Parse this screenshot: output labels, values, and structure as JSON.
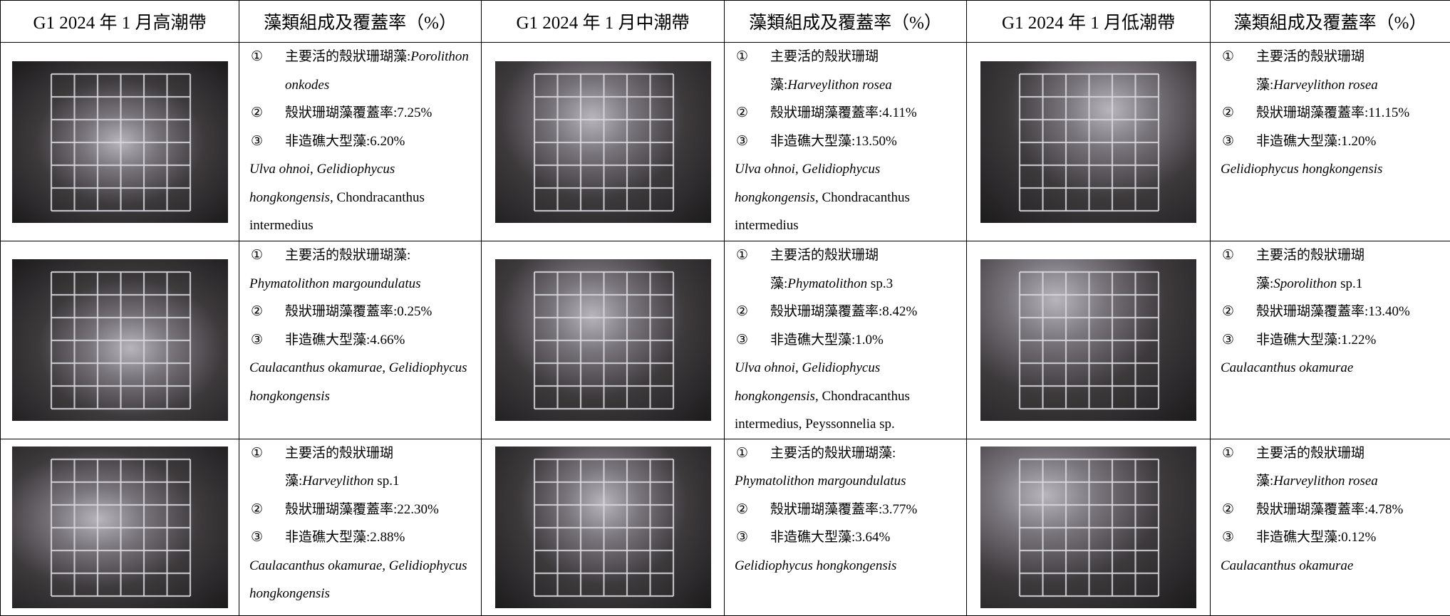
{
  "header": [
    "G1 2024 年 1 月高潮帶",
    "藻類組成及覆蓋率（%）",
    "G1 2024 年 1 月中潮帶",
    "藻類組成及覆蓋率（%）",
    "G1 2024 年 1 月低潮帶",
    "藻類組成及覆蓋率（%）"
  ],
  "rows": [
    [
      {
        "paragraphs": [
          {
            "marker": "①",
            "segments": [
              "主要活的殼狀珊瑚藻:",
              {
                "text": "Porolithon onkodes",
                "italic": true
              }
            ]
          },
          {
            "marker": "②",
            "segments": [
              "殼狀珊瑚藻覆蓋率:7.25%"
            ]
          },
          {
            "marker": "③",
            "segments": [
              "非造礁大型藻:6.20%"
            ]
          },
          {
            "segments": [
              {
                "text": "Ulva ohnoi",
                "italic": true
              },
              ", ",
              {
                "text": "Gelidiophycus hongkongensis",
                "italic": true
              },
              ", Chondracanthus intermedius"
            ]
          }
        ]
      },
      {
        "paragraphs": [
          {
            "marker": "①",
            "segments": [
              "主要活的殼狀珊瑚藻:",
              {
                "text": "Harveylithon rosea",
                "italic": true
              }
            ]
          },
          {
            "marker": "②",
            "segments": [
              "殼狀珊瑚藻覆蓋率:4.11%"
            ]
          },
          {
            "marker": "③",
            "segments": [
              "非造礁大型藻:13.50%"
            ]
          },
          {
            "segments": [
              {
                "text": "Ulva ohnoi",
                "italic": true
              },
              ", ",
              {
                "text": "Gelidiophycus hongkongensis",
                "italic": true
              },
              ", Chondracanthus intermedius"
            ]
          }
        ]
      },
      {
        "paragraphs": [
          {
            "marker": "①",
            "segments": [
              "主要活的殼狀珊瑚藻:",
              {
                "text": "Harveylithon rosea",
                "italic": true
              }
            ]
          },
          {
            "marker": "②",
            "segments": [
              "殼狀珊瑚藻覆蓋率:11.15%"
            ]
          },
          {
            "marker": "③",
            "segments": [
              "非造礁大型藻:1.20%"
            ]
          },
          {
            "segments": [
              {
                "text": "Gelidiophycus hongkongensis",
                "italic": true
              }
            ]
          }
        ]
      }
    ],
    [
      {
        "paragraphs": [
          {
            "marker": "①",
            "segments": [
              "主要活的殼狀珊瑚藻:"
            ]
          },
          {
            "segments": [
              {
                "text": "Phymatolithon margoundulatus",
                "italic": true
              }
            ]
          },
          {
            "marker": "②",
            "segments": [
              "殼狀珊瑚藻覆蓋率:0.25%"
            ]
          },
          {
            "marker": "③",
            "segments": [
              "非造礁大型藻:4.66%"
            ]
          },
          {
            "segments": [
              {
                "text": "Caulacanthus okamurae, Gelidiophycus hongkongensis",
                "italic": true
              }
            ]
          }
        ]
      },
      {
        "paragraphs": [
          {
            "marker": "①",
            "segments": [
              "主要活的殼狀珊瑚藻:",
              {
                "text": "Phymatolithon",
                "italic": true
              },
              " sp.3"
            ]
          },
          {
            "marker": "②",
            "segments": [
              "殼狀珊瑚藻覆蓋率:8.42%"
            ]
          },
          {
            "marker": "③",
            "segments": [
              "非造礁大型藻:1.0%"
            ]
          },
          {
            "segments": [
              {
                "text": "Ulva ohnoi",
                "italic": true
              },
              ", ",
              {
                "text": "Gelidiophycus hongkongensis",
                "italic": true
              },
              ", Chondracanthus intermedius, Peyssonnelia sp."
            ]
          }
        ]
      },
      {
        "paragraphs": [
          {
            "marker": "①",
            "segments": [
              "主要活的殼狀珊瑚藻:",
              {
                "text": "Sporolithon",
                "italic": true
              },
              " sp.1"
            ]
          },
          {
            "marker": "②",
            "segments": [
              "殼狀珊瑚藻覆蓋率:13.40%"
            ]
          },
          {
            "marker": "③",
            "segments": [
              "非造礁大型藻:1.22%"
            ]
          },
          {
            "segments": [
              {
                "text": "Caulacanthus okamurae",
                "italic": true
              }
            ]
          }
        ]
      }
    ],
    [
      {
        "paragraphs": [
          {
            "marker": "①",
            "segments": [
              "主要活的殼狀珊瑚藻:",
              {
                "text": "Harveylithon",
                "italic": true
              },
              " sp.1"
            ]
          },
          {
            "marker": "②",
            "segments": [
              "殼狀珊瑚藻覆蓋率:22.30%"
            ]
          },
          {
            "marker": "③",
            "segments": [
              "非造礁大型藻:2.88%"
            ]
          },
          {
            "segments": [
              {
                "text": "Caulacanthus okamurae, Gelidiophycus hongkongensis",
                "italic": true
              }
            ]
          }
        ]
      },
      {
        "paragraphs": [
          {
            "marker": "①",
            "segments": [
              "主要活的殼狀珊瑚藻:"
            ]
          },
          {
            "segments": [
              {
                "text": "Phymatolithon margoundulatus",
                "italic": true
              }
            ]
          },
          {
            "marker": "②",
            "segments": [
              "殼狀珊瑚藻覆蓋率:3.77%"
            ]
          },
          {
            "marker": "③",
            "segments": [
              "非造礁大型藻:3.64%"
            ]
          },
          {
            "segments": [
              {
                "text": "Gelidiophycus hongkongensis",
                "italic": true
              }
            ]
          }
        ]
      },
      {
        "paragraphs": [
          {
            "marker": "①",
            "segments": [
              "主要活的殼狀珊瑚藻:",
              {
                "text": "Harveylithon rosea",
                "italic": true
              }
            ]
          },
          {
            "marker": "②",
            "segments": [
              "殼狀珊瑚藻覆蓋率:4.78%"
            ]
          },
          {
            "marker": "③",
            "segments": [
              "非造礁大型藻:0.12%"
            ]
          },
          {
            "segments": [
              {
                "text": "Caulacanthus okamurae",
                "italic": true
              }
            ]
          }
        ]
      }
    ]
  ]
}
